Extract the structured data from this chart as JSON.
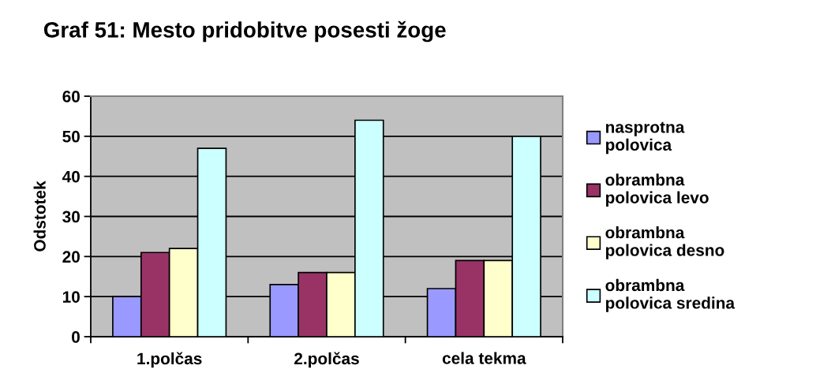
{
  "chart_data": {
    "type": "bar",
    "title": "Graf 51: Mesto pridobitve posesti žoge",
    "ylabel": "Odstotek",
    "categories": [
      "1.polčas",
      "2.polčas",
      "cela tekma"
    ],
    "series": [
      {
        "name": "nasprotna\npolovica",
        "color": "#9999ff",
        "values": [
          10,
          13,
          12
        ]
      },
      {
        "name": "obrambna\npolovica levo",
        "color": "#993366",
        "values": [
          21,
          16,
          19
        ]
      },
      {
        "name": "obrambna\npolovica desno",
        "color": "#ffffcc",
        "values": [
          22,
          16,
          19
        ]
      },
      {
        "name": "obrambna\npolovica sredina",
        "color": "#ccffff",
        "values": [
          47,
          54,
          50
        ]
      }
    ],
    "ylim": [
      0,
      60
    ],
    "yticks": [
      0,
      10,
      20,
      30,
      40,
      50,
      60
    ],
    "grid": "y",
    "legend": "right"
  }
}
